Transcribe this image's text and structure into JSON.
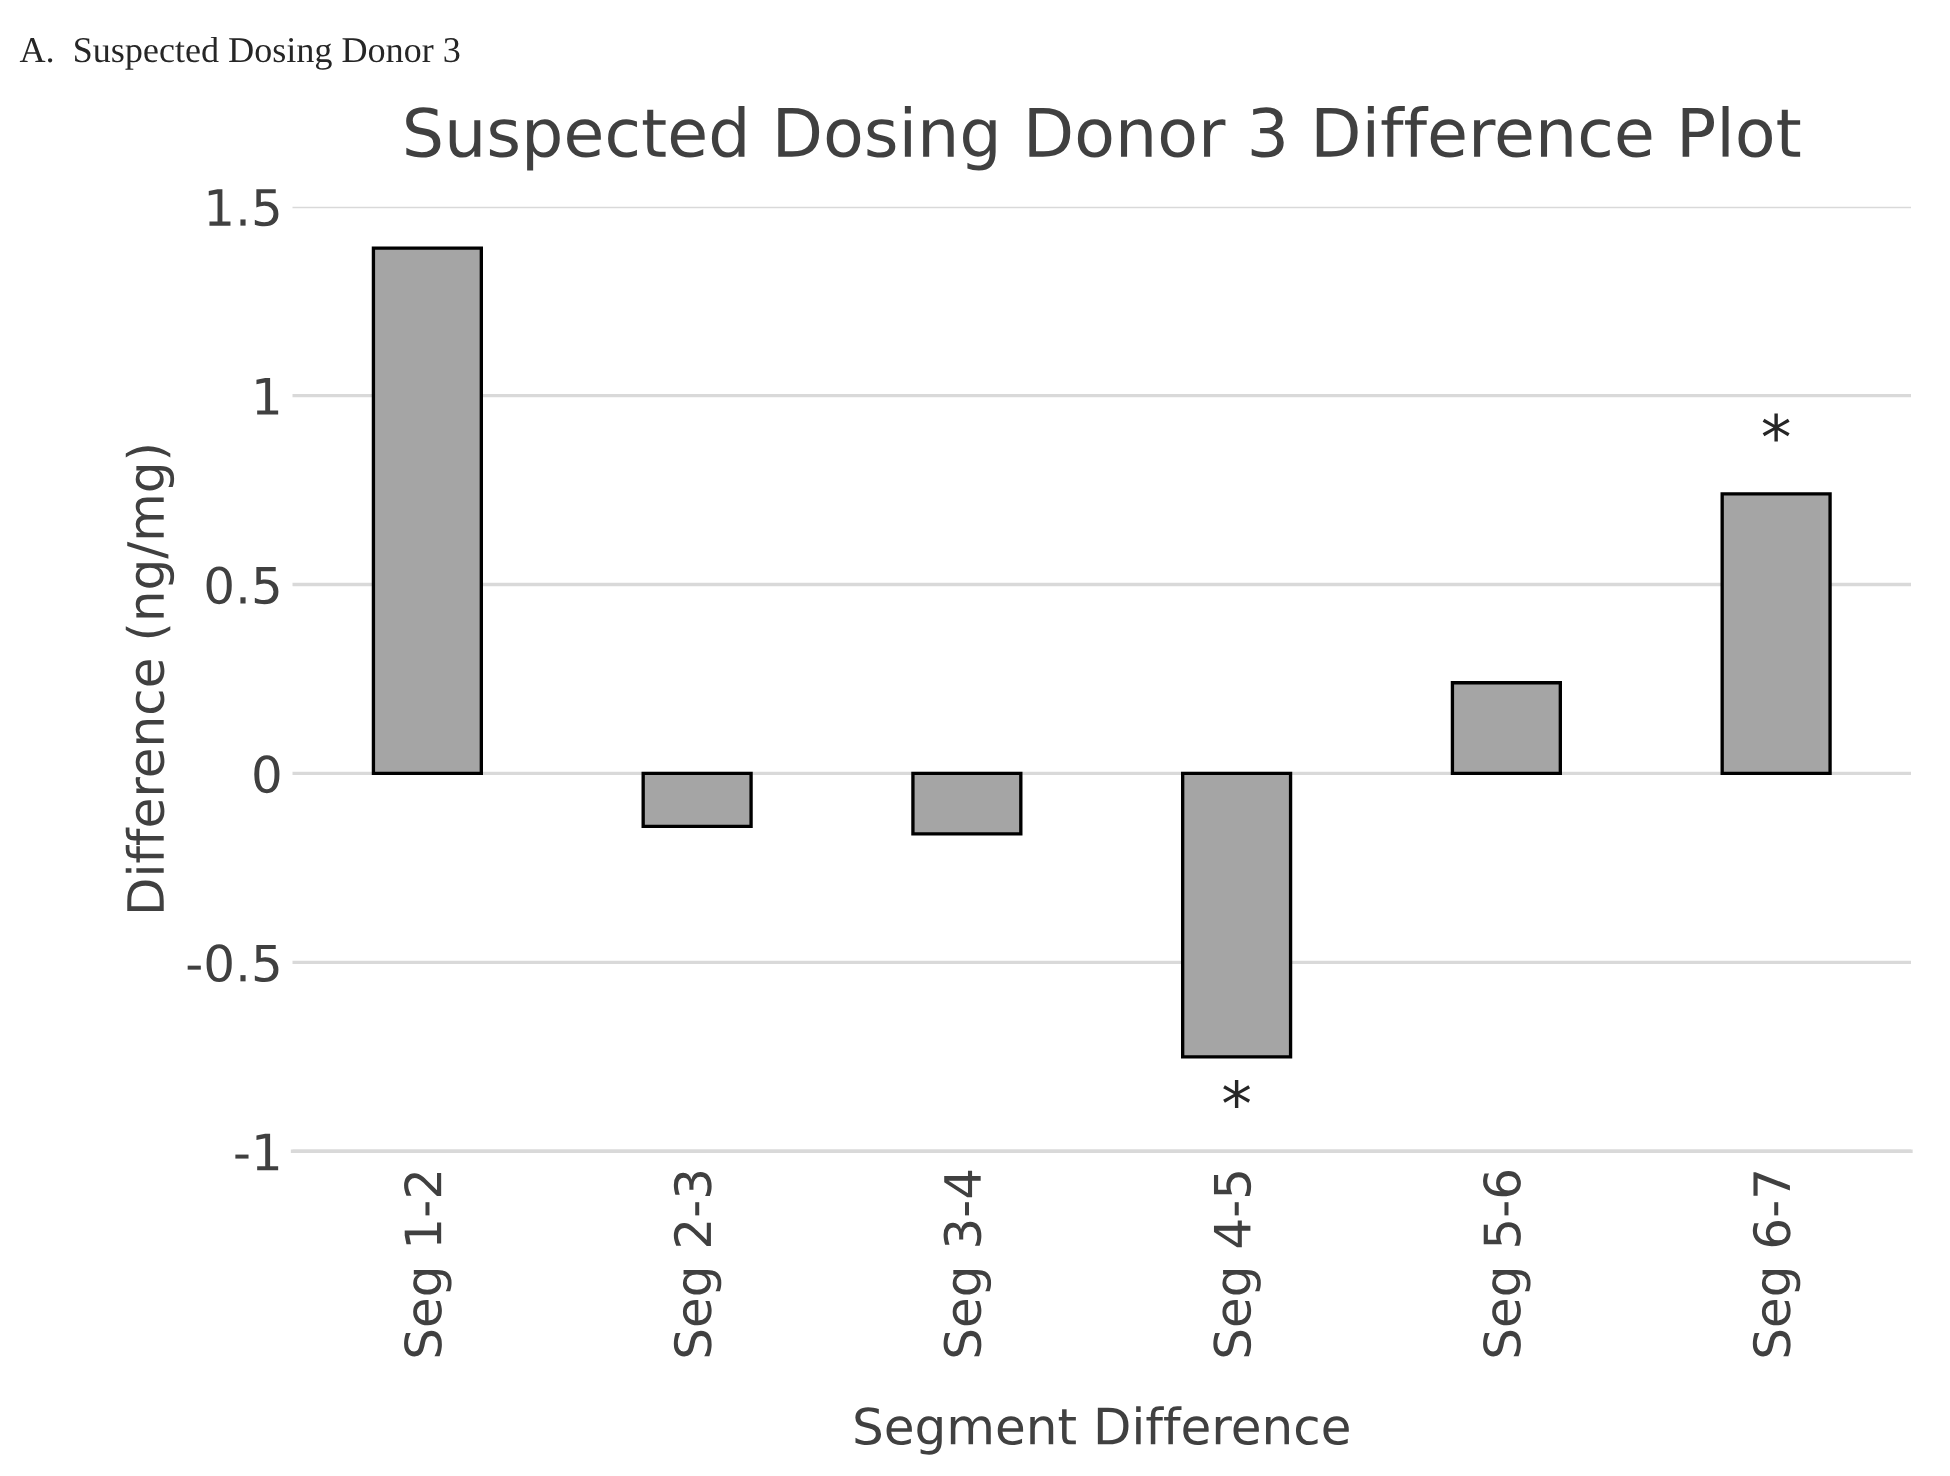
{
  "chart_data": {
    "type": "bar",
    "title": "Suspected Dosing Donor 3 Difference Plot",
    "xlabel": "Segment Difference",
    "ylabel": "Difference (ng/mg)",
    "categories": [
      "Seg 1-2",
      "Seg 2-3",
      "Seg 3-4",
      "Seg 4-5",
      "Seg 5-6",
      "Seg 6-7"
    ],
    "values": [
      1.39,
      -0.14,
      -0.16,
      -0.75,
      0.24,
      0.74
    ],
    "color": "#a5a5a5",
    "ylim": [
      -1,
      1.5
    ],
    "yticks": [
      -1,
      -0.5,
      0,
      0.5,
      1,
      1.5
    ],
    "grid": "y",
    "legend": false,
    "annotations": [
      "A.  Suspected Dosing Donor 3",
      {
        "text": "*",
        "x": "Seg 4-5",
        "y": -0.75
      },
      {
        "text": "*",
        "x": "Seg 6-7",
        "y": 0.74
      }
    ]
  }
}
